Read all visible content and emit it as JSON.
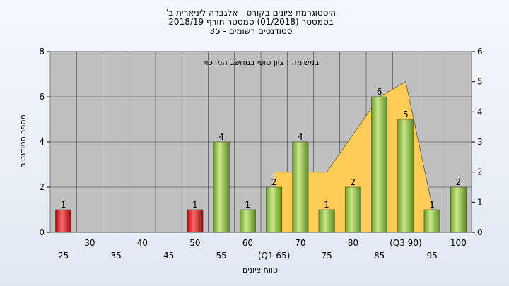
{
  "chart_data": {
    "type": "bar",
    "title_lines": [
      "היסטוגרמת ציונים בקורס - אלגברה ליניארית ב'",
      "בסמסטר  (01/2018)  סמסטר חורף 2018/19",
      "סטודנטים רשומים - 35"
    ],
    "annotation": "במשימה : ציון סופי במחשב המרכזי",
    "xlabel": "טווח ציונים",
    "ylabel": "מספר סטודנטים",
    "ylim": [
      0,
      8
    ],
    "y2lim": [
      0,
      6
    ],
    "yticks": [
      "0",
      "2",
      "4",
      "6",
      "8"
    ],
    "y2ticks": [
      "0",
      "1",
      "2",
      "3",
      "4",
      "5",
      "6"
    ],
    "categories": [
      "25",
      "30",
      "35",
      "40",
      "45",
      "50",
      "55",
      "60",
      "65",
      "70",
      "75",
      "80",
      "85",
      "90",
      "95",
      "100"
    ],
    "category_labels": [
      "25",
      "30",
      "35",
      "40",
      "45",
      "50",
      "55",
      "60",
      "(Q1 65)",
      "70",
      "75",
      "80",
      "85",
      "(Q3 90)",
      "95",
      "100"
    ],
    "values": [
      1,
      0,
      0,
      0,
      0,
      1,
      4,
      1,
      2,
      4,
      1,
      2,
      6,
      5,
      1,
      2
    ],
    "value_labels": [
      "1",
      "",
      "",
      "",
      "",
      "1",
      "4",
      "1",
      "2",
      "4",
      "1",
      "2",
      "6",
      "5",
      "1",
      "2"
    ],
    "bar_colors": [
      "#e02020",
      "#8bc34a",
      "#8bc34a",
      "#8bc34a",
      "#8bc34a",
      "#e02020",
      "#8bc34a",
      "#8bc34a",
      "#8bc34a",
      "#8bc34a",
      "#8bc34a",
      "#8bc34a",
      "#8bc34a",
      "#8bc34a",
      "#8bc34a",
      "#8bc34a"
    ],
    "area_series": {
      "axis": "y2",
      "color": "#ffcc55",
      "points": [
        [
          65,
          2
        ],
        [
          75,
          2
        ],
        [
          85,
          4.5
        ],
        [
          90,
          5
        ],
        [
          95,
          0.9
        ]
      ]
    },
    "grid": true
  }
}
